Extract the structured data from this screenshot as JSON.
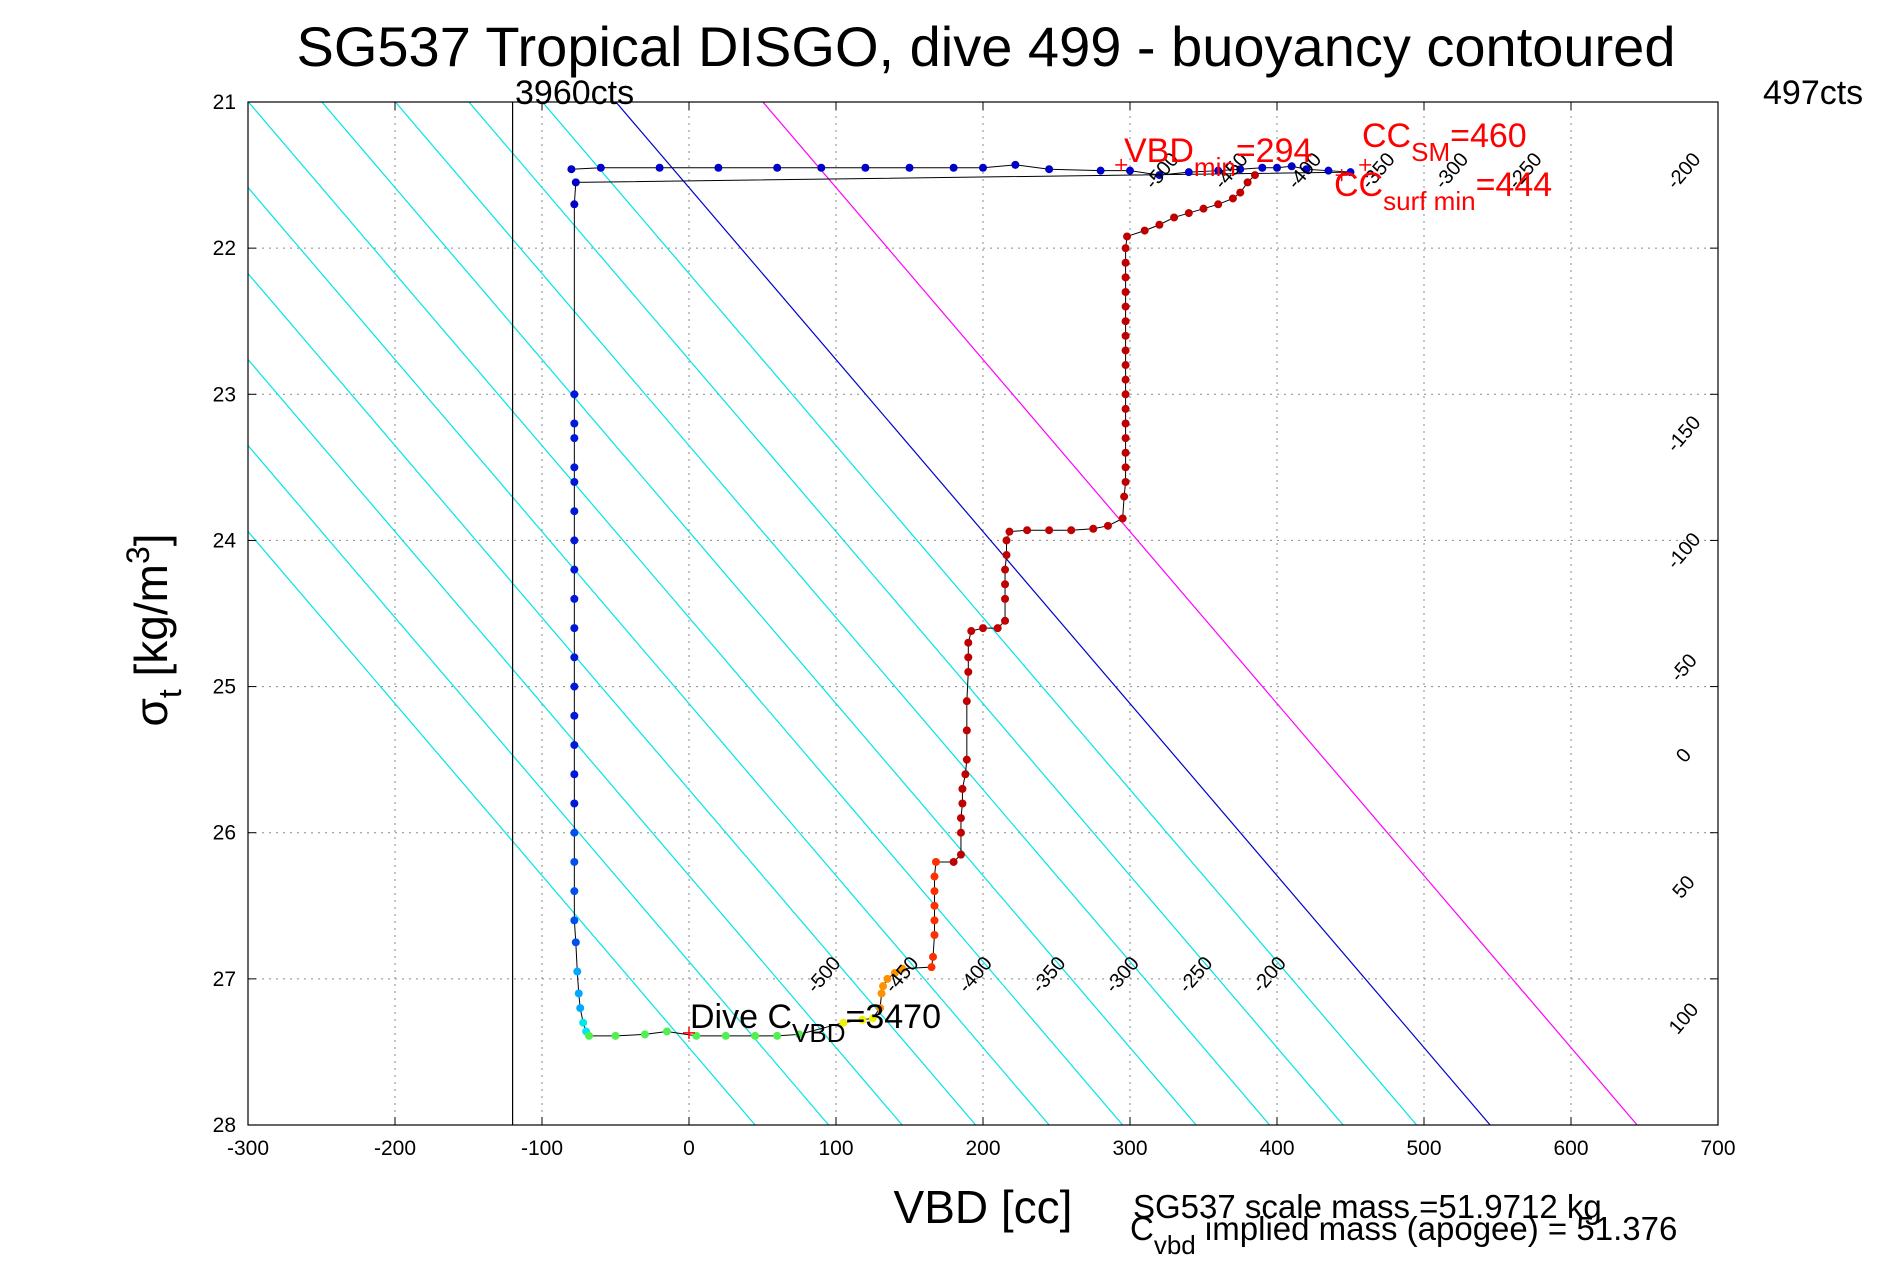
{
  "chart_data": {
    "type": "scatter",
    "title": "SG537 Tropical DISGO, dive 499 - buoyancy contoured",
    "xlabel": "VBD [cc]",
    "ylabel": {
      "main": "σ",
      "sub": "t",
      "unit": " [kg/m",
      "sup": "3",
      "close": "]"
    },
    "xlim": [
      -300,
      700
    ],
    "ylim": [
      21,
      28
    ],
    "y_reversed": true,
    "grid": true,
    "x_ticks": [
      "-300",
      "-200",
      "-100",
      "0",
      "100",
      "200",
      "300",
      "400",
      "500",
      "600",
      "700"
    ],
    "y_ticks": [
      "21",
      "22",
      "23",
      "24",
      "25",
      "26",
      "27",
      "28"
    ],
    "top_left_counts": "3960cts",
    "top_right_counts": "497cts",
    "counts_line_x": -120,
    "buoyancy_contours": {
      "slope": 0.01177,
      "cyan": {
        "color": "#00e5e5",
        "levels": [
          -500,
          -450,
          -400,
          -350,
          -300,
          -250,
          -200,
          -150,
          -100,
          -50
        ],
        "x_at_sigma28": [
          45,
          95,
          145,
          195,
          245,
          295,
          345,
          395,
          445,
          495
        ]
      },
      "zero": {
        "color": "#0000cc",
        "level": 0,
        "x_at_sigma28": 545
      },
      "positive": {
        "color": "#ff00ff",
        "level": 50,
        "x_at_sigma28": 645
      },
      "right_labels": [
        {
          "text": "-200",
          "x": 680,
          "y": 21.5
        },
        {
          "text": "-150",
          "x": 680,
          "y": 23.3
        },
        {
          "text": "-100",
          "x": 680,
          "y": 24.1
        },
        {
          "text": "-50",
          "x": 680,
          "y": 24.9
        },
        {
          "text": "0",
          "x": 680,
          "y": 25.5
        },
        {
          "text": "50",
          "x": 680,
          "y": 26.4
        },
        {
          "text": "100",
          "x": 680,
          "y": 27.3
        }
      ],
      "bottom_labels": [
        {
          "text": "-500",
          "x": 95,
          "y": 27.0
        },
        {
          "text": "-450",
          "x": 148,
          "y": 27.0
        },
        {
          "text": "-400",
          "x": 198,
          "y": 27.0
        },
        {
          "text": "-350",
          "x": 248,
          "y": 27.0
        },
        {
          "text": "-300",
          "x": 298,
          "y": 27.0
        },
        {
          "text": "-250",
          "x": 348,
          "y": 27.0
        },
        {
          "text": "-200",
          "x": 398,
          "y": 27.0
        }
      ],
      "top_labels": [
        {
          "text": "-500",
          "x": 325,
          "y": 21.5
        },
        {
          "text": "-450",
          "x": 372,
          "y": 21.5
        },
        {
          "text": "-400",
          "x": 422,
          "y": 21.5
        },
        {
          "text": "-350",
          "x": 472,
          "y": 21.5
        },
        {
          "text": "-300",
          "x": 522,
          "y": 21.5
        },
        {
          "text": "-250",
          "x": 572,
          "y": 21.5
        }
      ]
    },
    "series": [
      {
        "color": "#0000c8",
        "points": [
          [
            -80,
            21.46
          ],
          [
            -60,
            21.45
          ],
          [
            -20,
            21.45
          ],
          [
            20,
            21.45
          ],
          [
            60,
            21.45
          ],
          [
            90,
            21.45
          ],
          [
            120,
            21.45
          ],
          [
            150,
            21.45
          ],
          [
            180,
            21.45
          ],
          [
            200,
            21.45
          ],
          [
            222,
            21.43
          ],
          [
            245,
            21.46
          ],
          [
            280,
            21.47
          ],
          [
            300,
            21.47
          ],
          [
            320,
            21.5
          ],
          [
            340,
            21.48
          ],
          [
            360,
            21.47
          ],
          [
            375,
            21.46
          ],
          [
            390,
            21.45
          ],
          [
            400,
            21.45
          ],
          [
            410,
            21.44
          ],
          [
            420,
            21.46
          ],
          [
            435,
            21.47
          ],
          [
            450,
            21.48
          ],
          [
            -77,
            21.55
          ],
          [
            -78,
            21.7
          ]
        ]
      },
      {
        "color": "#0018d8",
        "points": [
          [
            -78,
            23.0
          ],
          [
            -78,
            23.2
          ],
          [
            -78,
            23.3
          ],
          [
            -78,
            23.5
          ],
          [
            -78,
            23.6
          ],
          [
            -78,
            23.8
          ],
          [
            -78,
            24.0
          ],
          [
            -78,
            24.2
          ],
          [
            -78,
            24.4
          ],
          [
            -78,
            24.6
          ],
          [
            -78,
            24.8
          ],
          [
            -78,
            25.0
          ],
          [
            -78,
            25.2
          ],
          [
            -78,
            25.4
          ],
          [
            -78,
            25.6
          ],
          [
            -78,
            25.8
          ]
        ]
      },
      {
        "color": "#0050f0",
        "points": [
          [
            -78,
            26.0
          ],
          [
            -78,
            26.2
          ],
          [
            -78,
            26.4
          ],
          [
            -78,
            26.6
          ],
          [
            -77,
            26.75
          ]
        ]
      },
      {
        "color": "#00a8ff",
        "points": [
          [
            -76,
            26.95
          ],
          [
            -75,
            27.1
          ],
          [
            -74,
            27.2
          ]
        ]
      },
      {
        "color": "#00e8e8",
        "points": [
          [
            -72,
            27.3
          ],
          [
            -70,
            27.36
          ]
        ]
      },
      {
        "color": "#50f050",
        "points": [
          [
            -68,
            27.39
          ],
          [
            -50,
            27.39
          ],
          [
            -30,
            27.38
          ],
          [
            -15,
            27.36
          ],
          [
            5,
            27.39
          ],
          [
            25,
            27.39
          ],
          [
            45,
            27.39
          ],
          [
            60,
            27.39
          ],
          [
            75,
            27.38
          ]
        ]
      },
      {
        "color": "#f0f000",
        "points": [
          [
            105,
            27.3
          ],
          [
            118,
            27.28
          ],
          [
            125,
            27.27
          ]
        ]
      },
      {
        "color": "#ff9000",
        "points": [
          [
            130,
            27.2
          ],
          [
            131,
            27.1
          ],
          [
            132,
            27.05
          ],
          [
            135,
            27.0
          ],
          [
            140,
            26.96
          ],
          [
            145,
            26.93
          ]
        ]
      },
      {
        "color": "#ff3000",
        "points": [
          [
            165,
            26.92
          ],
          [
            166,
            26.85
          ],
          [
            167,
            26.7
          ],
          [
            167,
            26.6
          ],
          [
            167,
            26.5
          ],
          [
            167,
            26.4
          ],
          [
            167,
            26.3
          ],
          [
            168,
            26.2
          ]
        ]
      },
      {
        "color": "#c00000",
        "points": [
          [
            180,
            26.2
          ],
          [
            185,
            26.15
          ],
          [
            185,
            26.0
          ],
          [
            185,
            25.9
          ],
          [
            186,
            25.8
          ],
          [
            186,
            25.7
          ],
          [
            188,
            25.6
          ],
          [
            189,
            25.5
          ],
          [
            189,
            25.3
          ],
          [
            189,
            25.1
          ],
          [
            190,
            24.9
          ],
          [
            190,
            24.8
          ],
          [
            190,
            24.7
          ],
          [
            192,
            24.62
          ],
          [
            200,
            24.6
          ],
          [
            210,
            24.6
          ],
          [
            215,
            24.55
          ],
          [
            215,
            24.4
          ],
          [
            215,
            24.3
          ],
          [
            215,
            24.2
          ],
          [
            216,
            24.1
          ],
          [
            216,
            24.0
          ],
          [
            218,
            23.94
          ],
          [
            230,
            23.93
          ],
          [
            245,
            23.93
          ],
          [
            260,
            23.93
          ],
          [
            275,
            23.92
          ],
          [
            285,
            23.9
          ],
          [
            295,
            23.85
          ],
          [
            296,
            23.7
          ],
          [
            297,
            23.6
          ],
          [
            297,
            23.5
          ],
          [
            297,
            23.4
          ],
          [
            297,
            23.3
          ],
          [
            297,
            23.2
          ],
          [
            297,
            23.1
          ],
          [
            297,
            23.0
          ],
          [
            297,
            22.9
          ],
          [
            297,
            22.8
          ],
          [
            297,
            22.7
          ],
          [
            297,
            22.6
          ],
          [
            297,
            22.5
          ],
          [
            297,
            22.4
          ],
          [
            297,
            22.3
          ],
          [
            297,
            22.2
          ],
          [
            297,
            22.1
          ],
          [
            297,
            22.0
          ],
          [
            298,
            21.92
          ],
          [
            310,
            21.88
          ],
          [
            320,
            21.84
          ],
          [
            330,
            21.79
          ],
          [
            340,
            21.76
          ],
          [
            350,
            21.73
          ],
          [
            360,
            21.7
          ],
          [
            370,
            21.66
          ],
          [
            375,
            21.62
          ],
          [
            380,
            21.55
          ],
          [
            385,
            21.5
          ]
        ]
      }
    ],
    "trace_order_note": "",
    "annotations": {
      "dive_cvbd": {
        "pre": "Dive C",
        "sub": "VBD",
        "post": "=3470",
        "x": 0,
        "y": 27.37
      },
      "vbd_min": {
        "pre": "VBD",
        "sub": "min",
        "post": "=294",
        "x": 294,
        "y": 21.43
      },
      "cc_sm": {
        "pre": "CC",
        "sub": "SM",
        "post": "=460",
        "x": 460,
        "y": 21.43
      },
      "cc_surf": {
        "pre": "CC",
        "sub": "surf min",
        "post": "=444",
        "x": 444,
        "y": 21.5
      }
    },
    "footer": {
      "scale_mass": "SG537 scale mass =51.9712 kg",
      "cvbd_pre": "C",
      "cvbd_sub": "vbd",
      "cvbd_post": " implied mass (apogee) = 51.376"
    }
  }
}
